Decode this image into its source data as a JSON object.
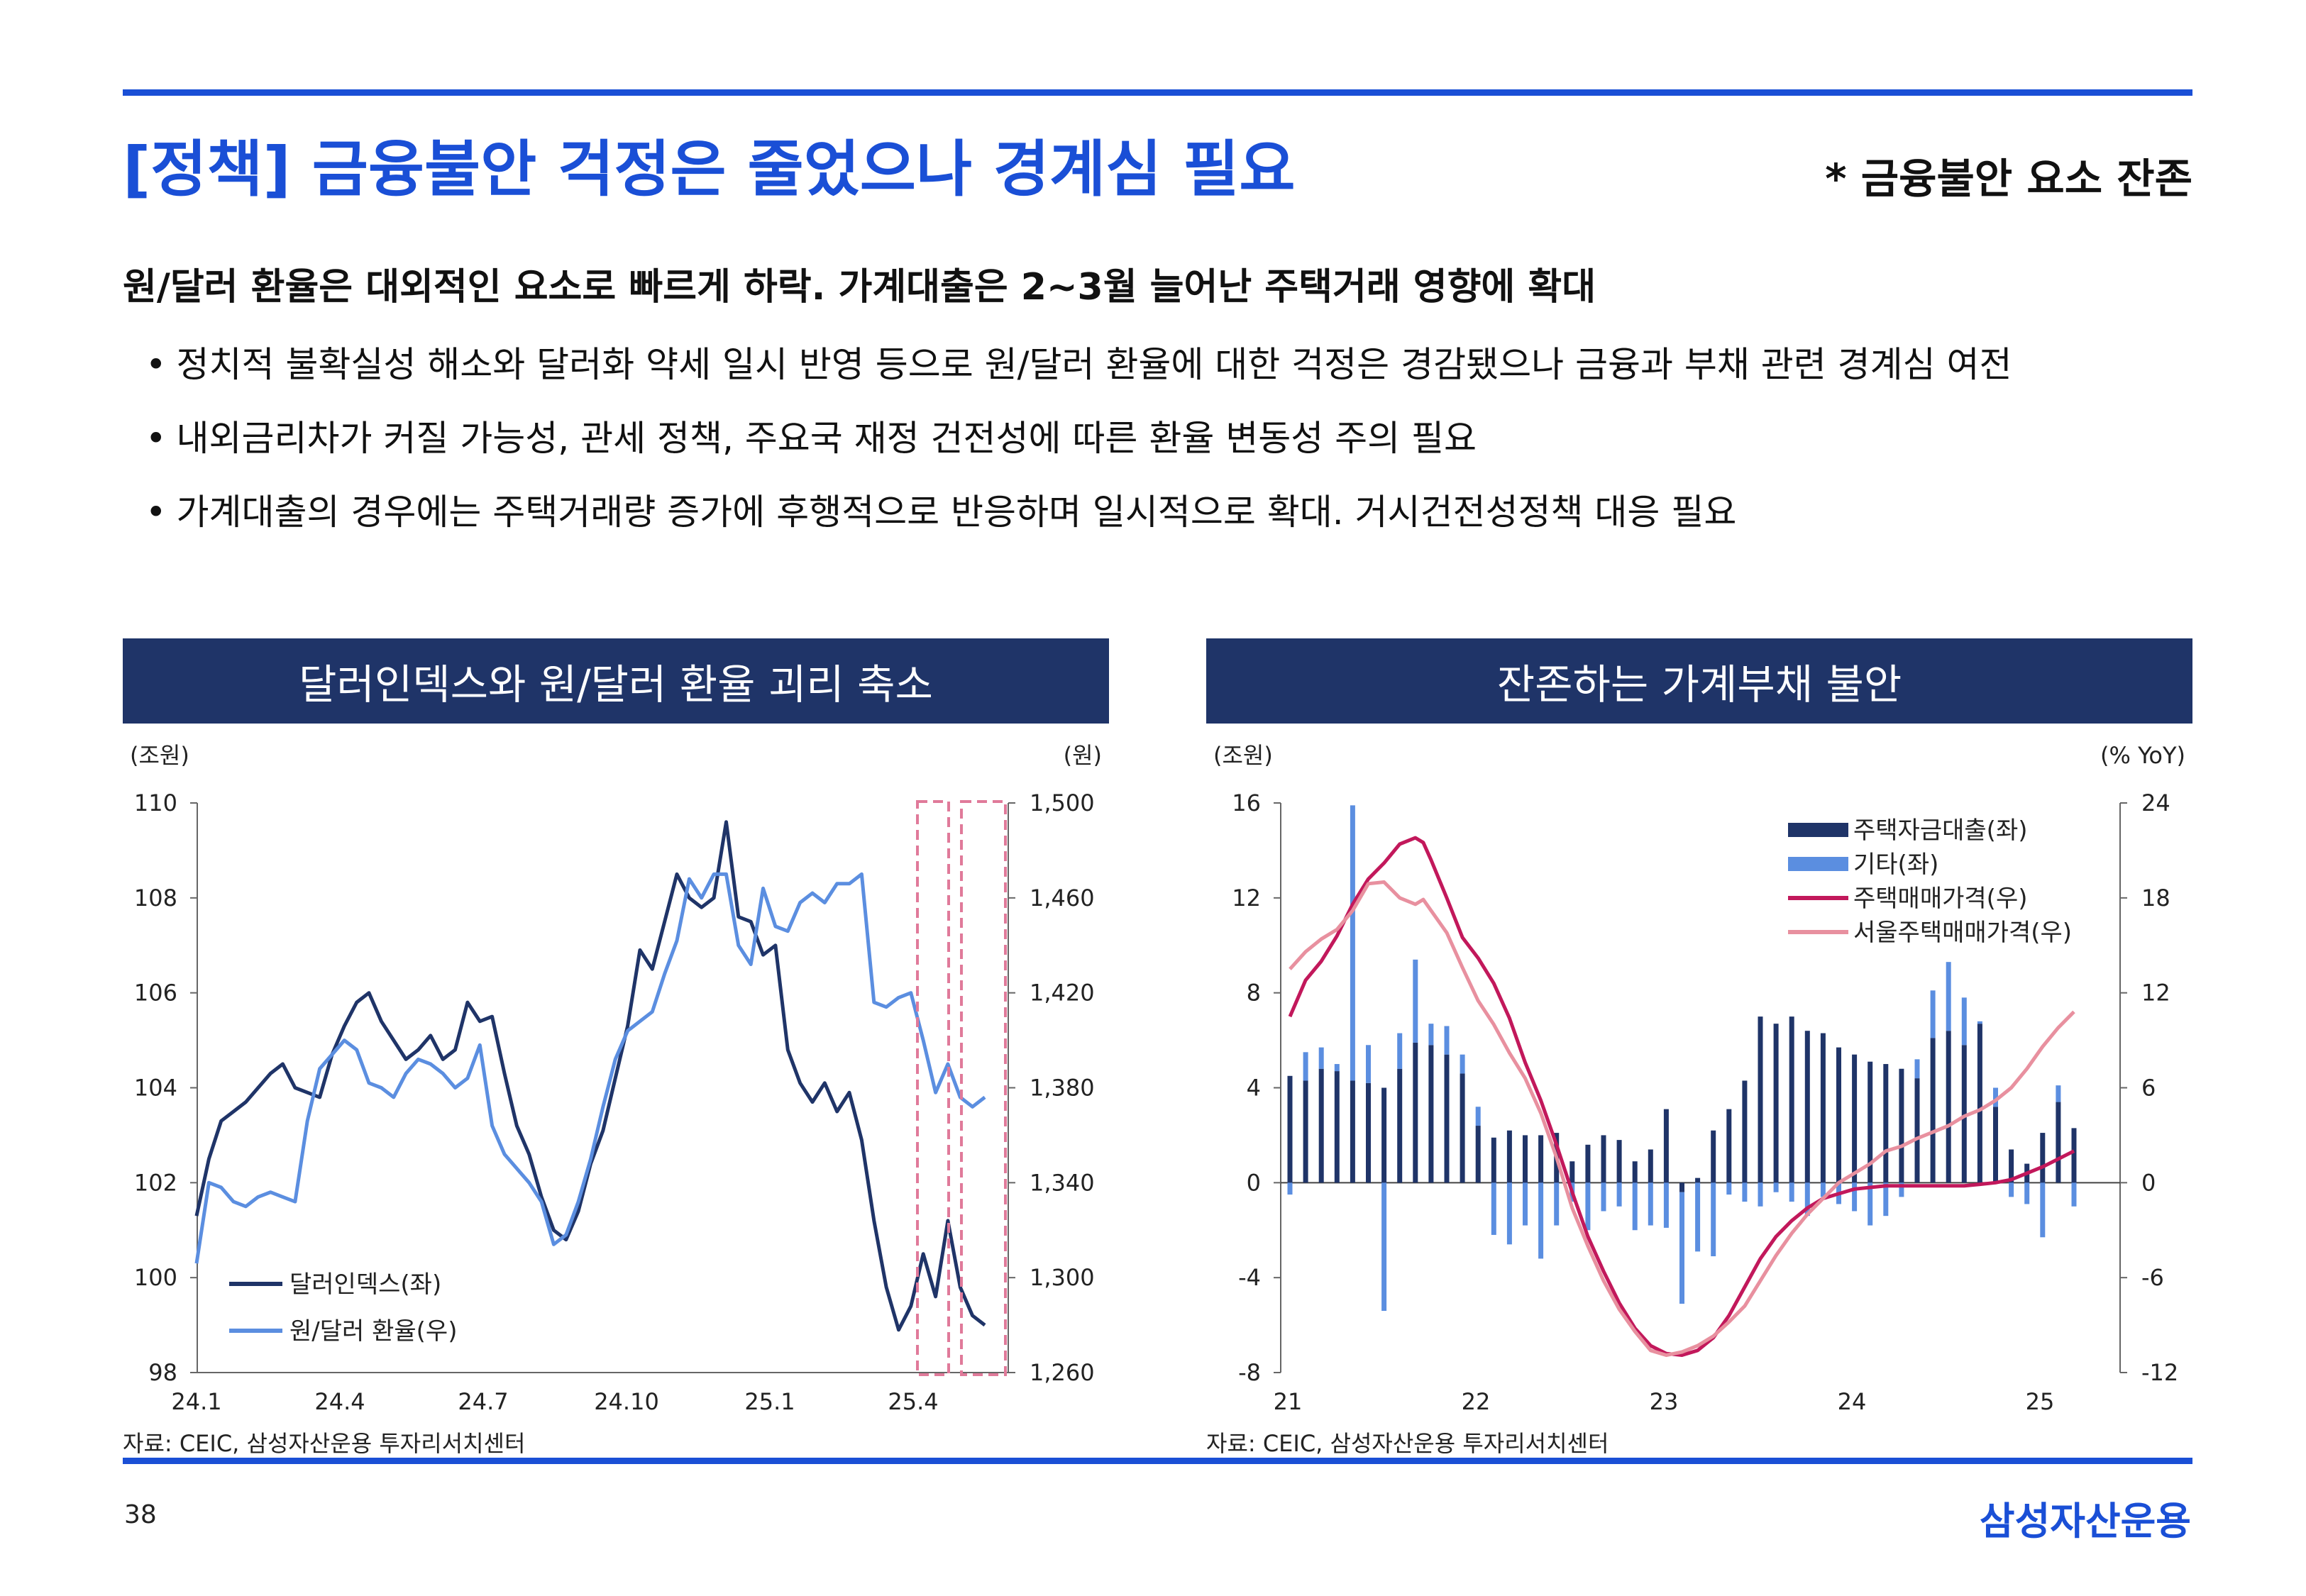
{
  "header": {
    "title": "[정책] 금융불안 걱정은 줄었으나 경계심 필요",
    "tag": "* 금융불안 요소 잔존"
  },
  "summary": {
    "headline": "원/달러 환율은 대외적인 요소로 빠르게 하락. 가계대출은 2~3월 늘어난 주택거래 영향에 확대",
    "bullets": [
      "정치적 불확실성 해소와 달러화 약세 일시 반영 등으로 원/달러 환율에 대한 걱정은 경감됐으나 금융과 부채 관련 경계심 여전",
      "내외금리차가 커질 가능성, 관세 정책, 주요국 재정 건전성에 따른 환율 변동성 주의 필요",
      "가계대출의 경우에는 주택거래량 증가에 후행적으로 반응하며 일시적으로 확대. 거시건전성정책 대응 필요"
    ],
    "bullet_mark": "•"
  },
  "colors": {
    "accent": "#1a4fd6",
    "panel": "#1f3468",
    "navy": "#1f3468",
    "light_blue": "#5b8ee0",
    "magenta": "#c2185b",
    "pink": "#e8909f"
  },
  "chart_data": [
    {
      "type": "line",
      "title": "달러인덱스와 원/달러 환율 괴리 축소",
      "left_unit": "(조원)",
      "right_unit": "(원)",
      "x_ticks": [
        "24.1",
        "24.4",
        "24.7",
        "24.10",
        "25.1",
        "25.4"
      ],
      "y_left": {
        "min": 98,
        "max": 110,
        "ticks": [
          "98",
          "100",
          "102",
          "104",
          "106",
          "108",
          "110"
        ]
      },
      "y_right": {
        "min": 1260,
        "max": 1500,
        "ticks": [
          "1,260",
          "1,300",
          "1,340",
          "1,380",
          "1,420",
          "1,460",
          "1,500"
        ]
      },
      "series": [
        {
          "name": "달러인덱스(좌)",
          "axis": "left",
          "color": "#1f3468",
          "values": [
            101.3,
            102.5,
            103.3,
            103.5,
            103.7,
            104.0,
            104.3,
            104.5,
            104.0,
            103.9,
            103.8,
            104.7,
            105.3,
            105.8,
            106.0,
            105.4,
            105.0,
            104.6,
            104.8,
            105.1,
            104.6,
            104.8,
            105.8,
            105.4,
            105.5,
            104.3,
            103.2,
            102.6,
            101.7,
            101.0,
            100.8,
            101.4,
            102.4,
            103.1,
            104.2,
            105.3,
            106.9,
            106.5,
            107.5,
            108.5,
            108.0,
            107.8,
            108.0,
            109.6,
            107.6,
            107.5,
            106.8,
            107.0,
            104.8,
            104.1,
            103.7,
            104.1,
            103.5,
            103.9,
            102.9,
            101.2,
            99.8,
            98.9,
            99.4,
            100.5,
            99.6,
            101.2,
            99.8,
            99.2,
            99.0
          ]
        },
        {
          "name": "원/달러 환율(우)",
          "axis": "left",
          "color": "#5b8ee0",
          "values": [
            100.3,
            102.0,
            101.9,
            101.6,
            101.5,
            101.7,
            101.8,
            101.7,
            101.6,
            103.3,
            104.4,
            104.7,
            105.0,
            104.8,
            104.1,
            104.0,
            103.8,
            104.3,
            104.6,
            104.5,
            104.3,
            104.0,
            104.2,
            104.9,
            103.2,
            102.6,
            102.3,
            102.0,
            101.6,
            100.7,
            100.9,
            101.6,
            102.5,
            103.6,
            104.6,
            105.2,
            105.4,
            105.6,
            106.4,
            107.1,
            108.4,
            108.0,
            108.5,
            108.5,
            107.0,
            106.6,
            108.2,
            107.4,
            107.3,
            107.9,
            108.1,
            107.9,
            108.3,
            108.3,
            108.5,
            105.8,
            105.7,
            105.9,
            106.0,
            105.0,
            103.9,
            104.5,
            103.8,
            103.6,
            103.8
          ]
        }
      ],
      "highlight_boxes": 2
    },
    {
      "type": "bar+line",
      "title": "잔존하는 가계부채 불안",
      "left_unit": "(조원)",
      "right_unit": "(% YoY)",
      "x_ticks": [
        "21",
        "22",
        "23",
        "24",
        "25"
      ],
      "y_left": {
        "min": -8,
        "max": 16,
        "ticks": [
          "-8",
          "-4",
          "0",
          "4",
          "8",
          "12",
          "16"
        ]
      },
      "y_right": {
        "min": -12,
        "max": 24,
        "ticks": [
          "-12",
          "-6",
          "0",
          "6",
          "12",
          "18",
          "24"
        ]
      },
      "bars": [
        {
          "name": "주택자금대출(좌)",
          "color": "#1f3468",
          "values": [
            4.5,
            4.3,
            4.8,
            4.7,
            4.3,
            4.2,
            4.0,
            4.8,
            5.9,
            5.8,
            5.4,
            4.6,
            2.4,
            1.9,
            2.2,
            2.0,
            2.0,
            2.1,
            0.9,
            1.6,
            2.0,
            1.8,
            0.9,
            1.4,
            3.1,
            -0.4,
            0.2,
            2.2,
            3.1,
            4.3,
            7.0,
            6.7,
            7.0,
            6.4,
            6.3,
            5.7,
            5.4,
            5.1,
            5.0,
            4.8,
            4.4,
            6.1,
            6.4,
            5.8,
            6.7,
            3.2,
            1.4,
            0.8,
            2.1,
            3.4,
            2.3
          ]
        },
        {
          "name": "기타(좌)",
          "color": "#5b8ee0",
          "values": [
            -0.5,
            1.2,
            0.9,
            0.3,
            11.6,
            1.6,
            -5.4,
            1.5,
            3.5,
            0.9,
            1.2,
            0.8,
            0.8,
            -2.2,
            -2.6,
            -1.8,
            -3.2,
            -1.8,
            -0.8,
            -2.0,
            -1.2,
            -1.0,
            -2.0,
            -1.8,
            -1.9,
            -4.7,
            -2.9,
            -3.1,
            -0.5,
            -0.8,
            -1.0,
            -0.4,
            -0.8,
            -1.4,
            -0.6,
            -0.9,
            -1.2,
            -1.8,
            -1.4,
            -0.6,
            0.8,
            2.0,
            2.9,
            2.0,
            0.1,
            0.8,
            -0.6,
            -0.9,
            -2.3,
            0.7,
            -1.0
          ]
        }
      ],
      "lines": [
        {
          "name": "주택매매가격(우)",
          "color": "#c2185b",
          "x": [
            0,
            0.5,
            1,
            1.5,
            2,
            2.5,
            3,
            3.5,
            4,
            4.25,
            4.5,
            5,
            5.5,
            6,
            6.5,
            7,
            7.5,
            8,
            8.5,
            9,
            9.5,
            10,
            10.5,
            11,
            11.5,
            12,
            12.5,
            13,
            13.5,
            14,
            14.5,
            15,
            15.5,
            16,
            16.5,
            17,
            17.5,
            18,
            18.5,
            19,
            19.5,
            20,
            20.5,
            21,
            21.5,
            22,
            22.5,
            23,
            23.5,
            24,
            24.5,
            25
          ],
          "values": [
            10.5,
            12.8,
            14.0,
            15.6,
            17.6,
            19.2,
            20.2,
            21.4,
            21.8,
            21.5,
            20.4,
            18.0,
            15.5,
            14.2,
            12.6,
            10.4,
            7.6,
            5.2,
            2.4,
            -0.6,
            -3.4,
            -5.6,
            -7.6,
            -9.2,
            -10.3,
            -10.8,
            -10.9,
            -10.6,
            -9.8,
            -8.4,
            -6.6,
            -4.8,
            -3.4,
            -2.4,
            -1.6,
            -1.0,
            -0.7,
            -0.4,
            -0.3,
            -0.2,
            -0.2,
            -0.2,
            -0.2,
            -0.2,
            -0.2,
            -0.1,
            0.0,
            0.2,
            0.6,
            1.0,
            1.5,
            2.0
          ]
        },
        {
          "name": "서울주택매매가격(우)",
          "color": "#e8909f",
          "x": [
            0,
            0.5,
            1,
            1.5,
            2,
            2.5,
            3,
            3.5,
            4,
            4.25,
            4.5,
            5,
            5.5,
            6,
            6.5,
            7,
            7.5,
            8,
            8.5,
            9,
            9.5,
            10,
            10.5,
            11,
            11.5,
            12,
            12.5,
            13,
            13.5,
            14,
            14.5,
            15,
            15.5,
            16,
            16.5,
            17,
            17.5,
            18,
            18.5,
            19,
            19.5,
            20,
            20.5,
            21,
            21.5,
            22,
            22.5,
            23,
            23.5,
            24,
            24.5,
            25
          ],
          "values": [
            13.5,
            14.6,
            15.4,
            16.0,
            17.2,
            18.9,
            19.0,
            18.0,
            17.6,
            17.9,
            17.2,
            15.8,
            13.6,
            11.5,
            10.0,
            8.2,
            6.6,
            4.4,
            1.6,
            -1.6,
            -4.0,
            -6.2,
            -8.0,
            -9.4,
            -10.6,
            -10.9,
            -10.7,
            -10.3,
            -9.7,
            -8.8,
            -7.8,
            -6.2,
            -4.6,
            -3.2,
            -2.0,
            -1.0,
            0.0,
            0.6,
            1.2,
            2.0,
            2.3,
            2.8,
            3.2,
            3.6,
            4.2,
            4.6,
            5.2,
            6.0,
            7.2,
            8.6,
            9.8,
            10.8
          ]
        }
      ]
    }
  ],
  "panels": {
    "left_source": "자료: CEIC, 삼성자산운용 투자리서치센터",
    "right_source": "자료: CEIC, 삼성자산운용 투자리서치센터"
  },
  "footer": {
    "page": "38",
    "brand": "삼성자산운용"
  }
}
